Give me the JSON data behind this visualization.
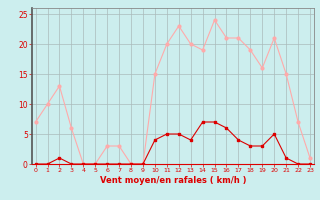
{
  "x": [
    0,
    1,
    2,
    3,
    4,
    5,
    6,
    7,
    8,
    9,
    10,
    11,
    12,
    13,
    14,
    15,
    16,
    17,
    18,
    19,
    20,
    21,
    22,
    23
  ],
  "wind_mean": [
    0,
    0,
    1,
    0,
    0,
    0,
    0,
    0,
    0,
    0,
    4,
    5,
    5,
    4,
    7,
    7,
    6,
    4,
    3,
    3,
    5,
    1,
    0,
    0
  ],
  "wind_gust": [
    7,
    10,
    13,
    6,
    0,
    0,
    3,
    3,
    0,
    0,
    15,
    20,
    23,
    20,
    19,
    24,
    21,
    21,
    19,
    16,
    21,
    15,
    7,
    1
  ],
  "mean_color": "#dd0000",
  "gust_color": "#ffaaaa",
  "bg_color": "#cceeee",
  "grid_color": "#aabbbb",
  "xlabel": "Vent moyen/en rafales ( km/h )",
  "xlabel_color": "#dd0000",
  "yticks": [
    0,
    5,
    10,
    15,
    20,
    25
  ],
  "xticks": [
    0,
    1,
    2,
    3,
    4,
    5,
    6,
    7,
    8,
    9,
    10,
    11,
    12,
    13,
    14,
    15,
    16,
    17,
    18,
    19,
    20,
    21,
    22,
    23
  ],
  "ylim": [
    0,
    26
  ],
  "xlim": [
    -0.3,
    23.3
  ],
  "tick_color": "#dd0000",
  "spine_color": "#888888",
  "marker_mean": 3,
  "marker_gust": 3
}
